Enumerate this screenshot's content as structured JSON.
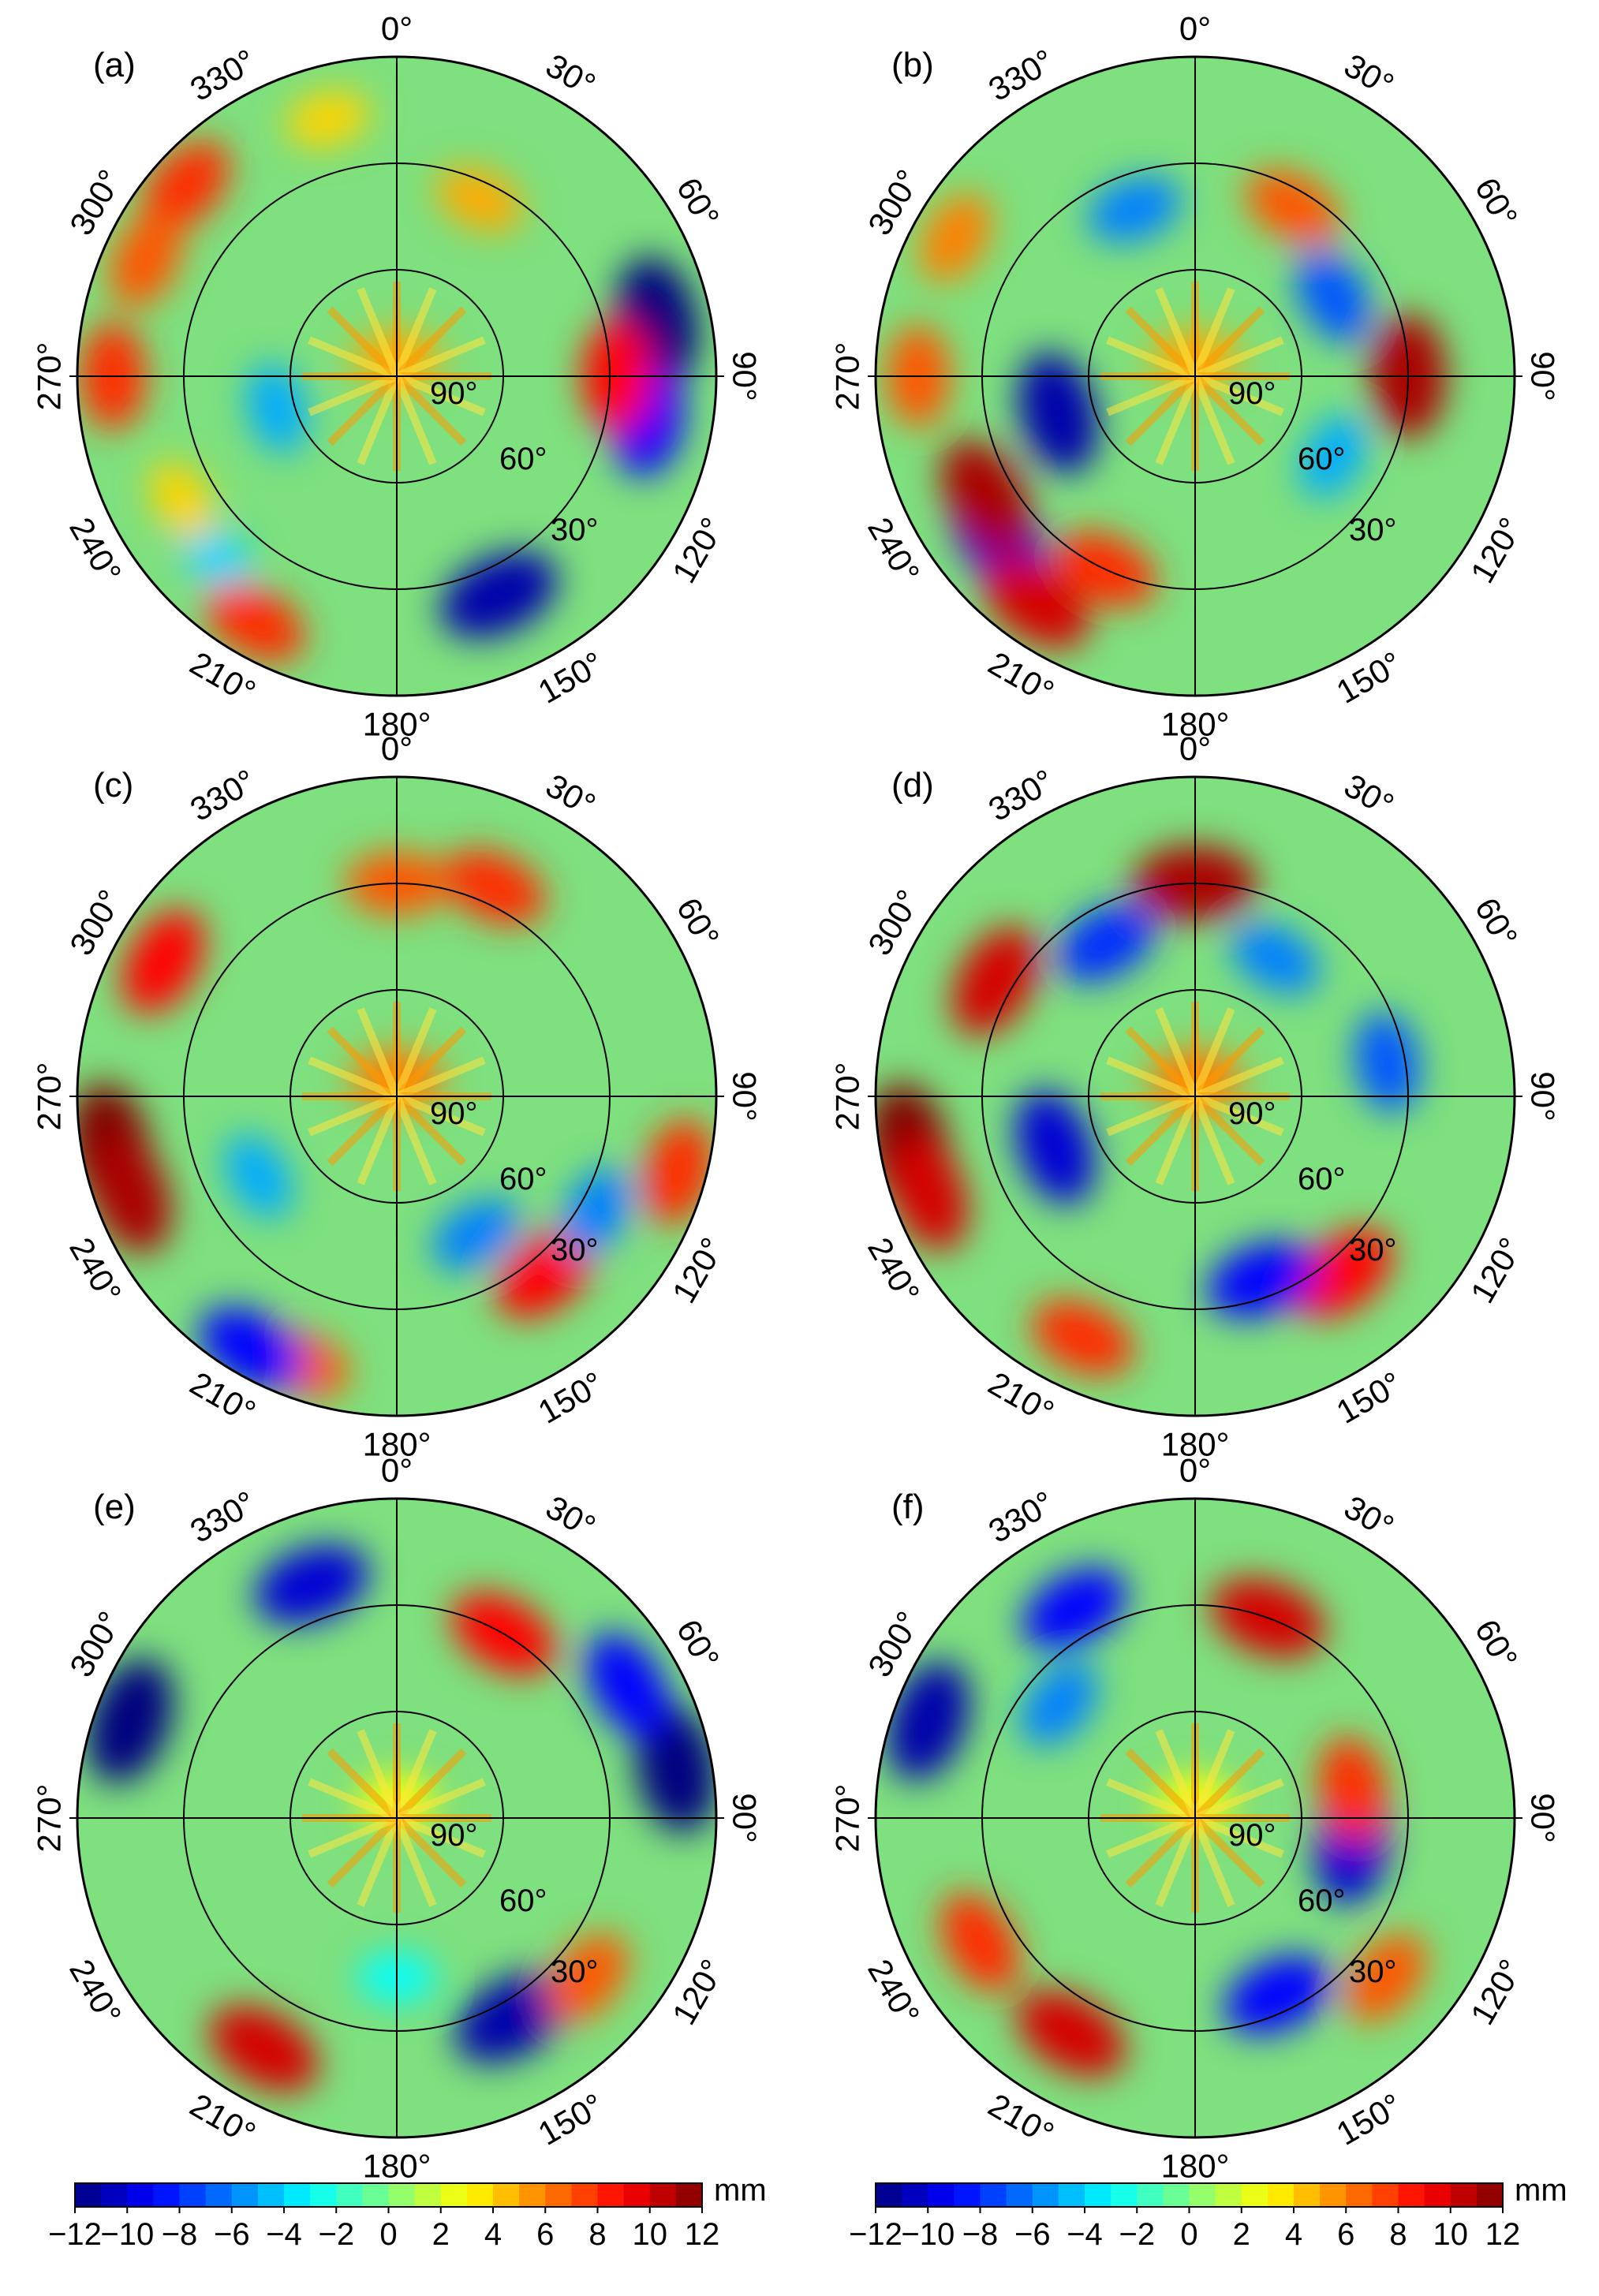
{
  "chart_data": [
    {
      "type": "heatmap",
      "projection": "polar-skyplot",
      "panel_label": "(a)",
      "azimuth_tick_labels": [
        "0°",
        "30°",
        "60°",
        "90°",
        "120°",
        "150°",
        "180°",
        "210°",
        "240°",
        "270°",
        "300°",
        "330°"
      ],
      "elevation_ring_labels": [
        "90°",
        "60°",
        "30°"
      ],
      "colorbar_index": 0,
      "blobs": [
        {
          "az": 78,
          "el": 15,
          "value": -12
        },
        {
          "az": 155,
          "el": 22,
          "value": -11
        },
        {
          "az": 100,
          "el": 18,
          "value": -9
        },
        {
          "az": 255,
          "el": 55,
          "value": -5
        },
        {
          "az": 225,
          "el": 18,
          "value": -4
        },
        {
          "az": 90,
          "el": 28,
          "value": 9
        },
        {
          "az": 312,
          "el": 10,
          "value": 8
        },
        {
          "az": 295,
          "el": 12,
          "value": 7
        },
        {
          "az": 270,
          "el": 10,
          "value": 8
        },
        {
          "az": 210,
          "el": 10,
          "value": 8
        },
        {
          "az": 240,
          "el": 20,
          "value": 4
        },
        {
          "az": 25,
          "el": 35,
          "value": 5
        },
        {
          "az": 345,
          "el": 15,
          "value": 4
        },
        {
          "az": 0,
          "el": 85,
          "value": 5
        }
      ]
    },
    {
      "type": "heatmap",
      "projection": "polar-skyplot",
      "panel_label": "(b)",
      "azimuth_tick_labels": [
        "0°",
        "30°",
        "60°",
        "90°",
        "120°",
        "150°",
        "180°",
        "210°",
        "240°",
        "270°",
        "300°",
        "330°"
      ],
      "elevation_ring_labels": [
        "90°",
        "60°",
        "30°"
      ],
      "colorbar_index": 1,
      "blobs": [
        {
          "az": 255,
          "el": 50,
          "value": -11
        },
        {
          "az": 230,
          "el": 18,
          "value": -10
        },
        {
          "az": 60,
          "el": 45,
          "value": -7
        },
        {
          "az": 340,
          "el": 40,
          "value": -6
        },
        {
          "az": 120,
          "el": 45,
          "value": -5
        },
        {
          "az": 90,
          "el": 30,
          "value": 11
        },
        {
          "az": 240,
          "el": 22,
          "value": 11
        },
        {
          "az": 215,
          "el": 12,
          "value": 10
        },
        {
          "az": 205,
          "el": 30,
          "value": 8
        },
        {
          "az": 30,
          "el": 35,
          "value": 7
        },
        {
          "az": 300,
          "el": 12,
          "value": 6
        },
        {
          "az": 270,
          "el": 12,
          "value": 7
        },
        {
          "az": 0,
          "el": 85,
          "value": 5
        }
      ]
    },
    {
      "type": "heatmap",
      "projection": "polar-skyplot",
      "panel_label": "(c)",
      "azimuth_tick_labels": [
        "0°",
        "30°",
        "60°",
        "90°",
        "120°",
        "150°",
        "180°",
        "210°",
        "240°",
        "270°",
        "300°",
        "330°"
      ],
      "elevation_ring_labels": [
        "90°",
        "60°",
        "30°"
      ],
      "colorbar_index": 0,
      "blobs": [
        {
          "az": 260,
          "el": 8,
          "value": 12
        },
        {
          "az": 250,
          "el": 10,
          "value": 11
        },
        {
          "az": 300,
          "el": 14,
          "value": 9
        },
        {
          "az": 25,
          "el": 25,
          "value": 8
        },
        {
          "az": 105,
          "el": 8,
          "value": 8
        },
        {
          "az": 140,
          "el": 25,
          "value": 9
        },
        {
          "az": 200,
          "el": 10,
          "value": 7
        },
        {
          "az": 210,
          "el": 8,
          "value": -9
        },
        {
          "az": 150,
          "el": 45,
          "value": -6
        },
        {
          "az": 240,
          "el": 45,
          "value": -5
        },
        {
          "az": 120,
          "el": 25,
          "value": -6
        },
        {
          "az": 0,
          "el": 30,
          "value": 7
        },
        {
          "az": 0,
          "el": 85,
          "value": 6
        }
      ]
    },
    {
      "type": "heatmap",
      "projection": "polar-skyplot",
      "panel_label": "(d)",
      "azimuth_tick_labels": [
        "0°",
        "30°",
        "60°",
        "90°",
        "120°",
        "150°",
        "180°",
        "210°",
        "240°",
        "270°",
        "300°",
        "330°"
      ],
      "elevation_ring_labels": [
        "90°",
        "60°",
        "30°"
      ],
      "colorbar_index": 1,
      "blobs": [
        {
          "az": 260,
          "el": 8,
          "value": 12
        },
        {
          "az": 250,
          "el": 10,
          "value": 10
        },
        {
          "az": 0,
          "el": 30,
          "value": 11
        },
        {
          "az": 300,
          "el": 25,
          "value": 10
        },
        {
          "az": 140,
          "el": 25,
          "value": 9
        },
        {
          "az": 205,
          "el": 15,
          "value": 8
        },
        {
          "az": 250,
          "el": 48,
          "value": -10
        },
        {
          "az": 330,
          "el": 40,
          "value": -8
        },
        {
          "az": 160,
          "el": 35,
          "value": -9
        },
        {
          "az": 80,
          "el": 35,
          "value": -7
        },
        {
          "az": 30,
          "el": 45,
          "value": -6
        },
        {
          "az": 0,
          "el": 85,
          "value": 6
        }
      ]
    },
    {
      "type": "heatmap",
      "projection": "polar-skyplot",
      "panel_label": "(e)",
      "azimuth_tick_labels": [
        "0°",
        "30°",
        "60°",
        "90°",
        "120°",
        "150°",
        "180°",
        "210°",
        "240°",
        "270°",
        "300°",
        "330°"
      ],
      "elevation_ring_labels": [
        "90°",
        "60°",
        "30°"
      ],
      "colorbar_index": 0,
      "blobs": [
        {
          "az": 290,
          "el": 10,
          "value": -12
        },
        {
          "az": 80,
          "el": 10,
          "value": -12
        },
        {
          "az": 340,
          "el": 20,
          "value": -10
        },
        {
          "az": 60,
          "el": 15,
          "value": -9
        },
        {
          "az": 150,
          "el": 25,
          "value": -11
        },
        {
          "az": 30,
          "el": 30,
          "value": 9
        },
        {
          "az": 210,
          "el": 15,
          "value": 10
        },
        {
          "az": 130,
          "el": 20,
          "value": 7
        },
        {
          "az": 180,
          "el": 45,
          "value": -3
        },
        {
          "az": 0,
          "el": 85,
          "value": 3
        }
      ]
    },
    {
      "type": "heatmap",
      "projection": "polar-skyplot",
      "panel_label": "(f)",
      "azimuth_tick_labels": [
        "0°",
        "30°",
        "60°",
        "90°",
        "120°",
        "150°",
        "180°",
        "210°",
        "240°",
        "270°",
        "300°",
        "330°"
      ],
      "elevation_ring_labels": [
        "90°",
        "60°",
        "30°"
      ],
      "colorbar_index": 1,
      "blobs": [
        {
          "az": 290,
          "el": 10,
          "value": -11
        },
        {
          "az": 330,
          "el": 22,
          "value": -9
        },
        {
          "az": 310,
          "el": 40,
          "value": -6
        },
        {
          "az": 100,
          "el": 45,
          "value": -10
        },
        {
          "az": 155,
          "el": 35,
          "value": -9
        },
        {
          "az": 20,
          "el": 30,
          "value": 10
        },
        {
          "az": 210,
          "el": 20,
          "value": 10
        },
        {
          "az": 240,
          "el": 20,
          "value": 8
        },
        {
          "az": 80,
          "el": 45,
          "value": 8
        },
        {
          "az": 130,
          "el": 20,
          "value": 7
        },
        {
          "az": 0,
          "el": 85,
          "value": 3
        }
      ]
    }
  ],
  "colorbars": [
    {
      "unit": "mm",
      "min": -12,
      "max": 12,
      "tick_labels": [
        "−12",
        "−10",
        "−8",
        "−6",
        "−4",
        "−2",
        "0",
        "2",
        "4",
        "6",
        "8",
        "10",
        "12"
      ]
    },
    {
      "unit": "mm",
      "min": -12,
      "max": 12,
      "tick_labels": [
        "−12",
        "−10",
        "−8",
        "−6",
        "−4",
        "−2",
        "0",
        "2",
        "4",
        "6",
        "8",
        "10",
        "12"
      ]
    }
  ],
  "colors": {
    "background": "#7ee07e",
    "scale": [
      "#00007f",
      "#0000ff",
      "#007fff",
      "#00ffff",
      "#7fff7f",
      "#ffff00",
      "#ff7f00",
      "#ff0000",
      "#7f0000"
    ]
  }
}
